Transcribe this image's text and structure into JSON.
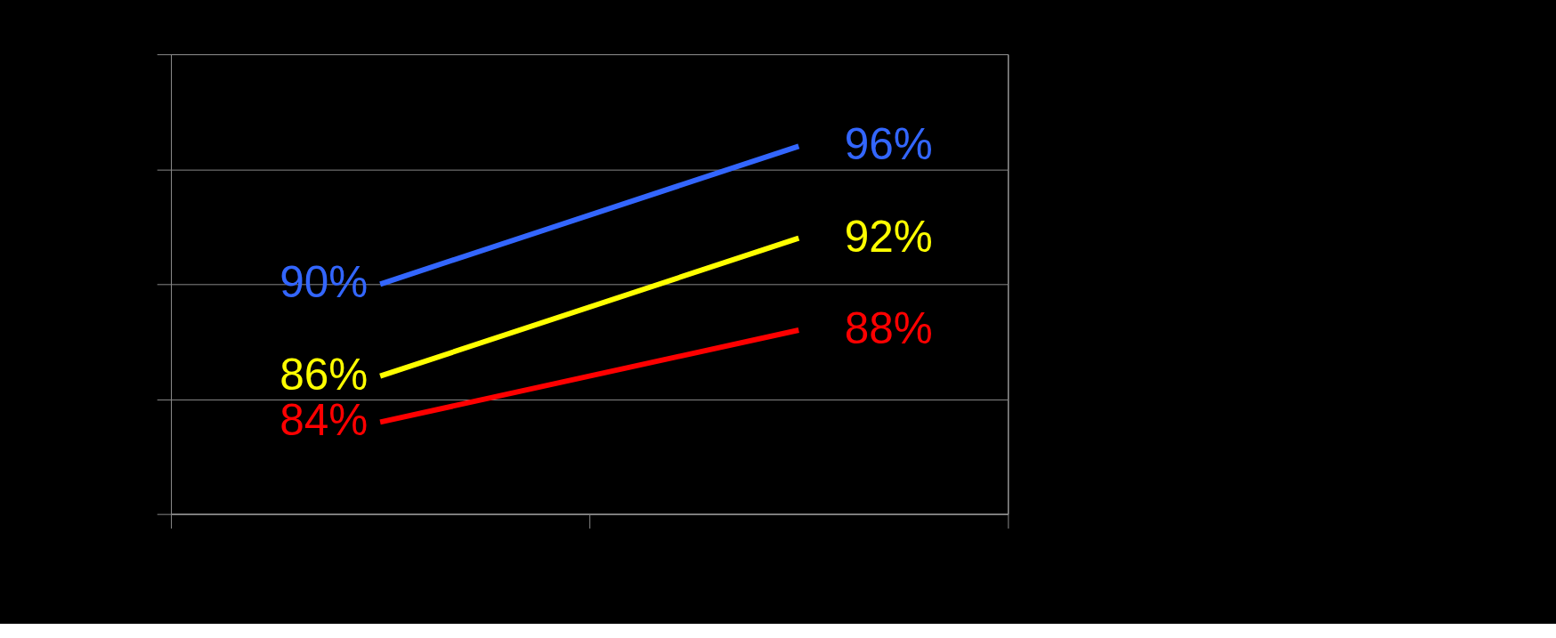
{
  "chart_data": {
    "type": "line",
    "categories": [
      null,
      null
    ],
    "series": [
      {
        "color": "#3366ff",
        "values": [
          90,
          96
        ],
        "value_labels": [
          "90%",
          "96%"
        ]
      },
      {
        "color": "#ffff00",
        "values": [
          86,
          92
        ],
        "value_labels": [
          "86%",
          "92%"
        ]
      },
      {
        "color": "#ff0000",
        "values": [
          84,
          88
        ],
        "value_labels": [
          "84%",
          "88%"
        ]
      }
    ],
    "ylim": [
      80,
      100
    ],
    "yticks": [
      {
        "value": 80,
        "label": null
      },
      {
        "value": 85,
        "label": null
      },
      {
        "value": 90,
        "label": null
      },
      {
        "value": 95,
        "label": null
      },
      {
        "value": 100,
        "label": null
      }
    ],
    "tick_labels": false,
    "grid": "y",
    "marker": "none",
    "line_style": "solid"
  }
}
